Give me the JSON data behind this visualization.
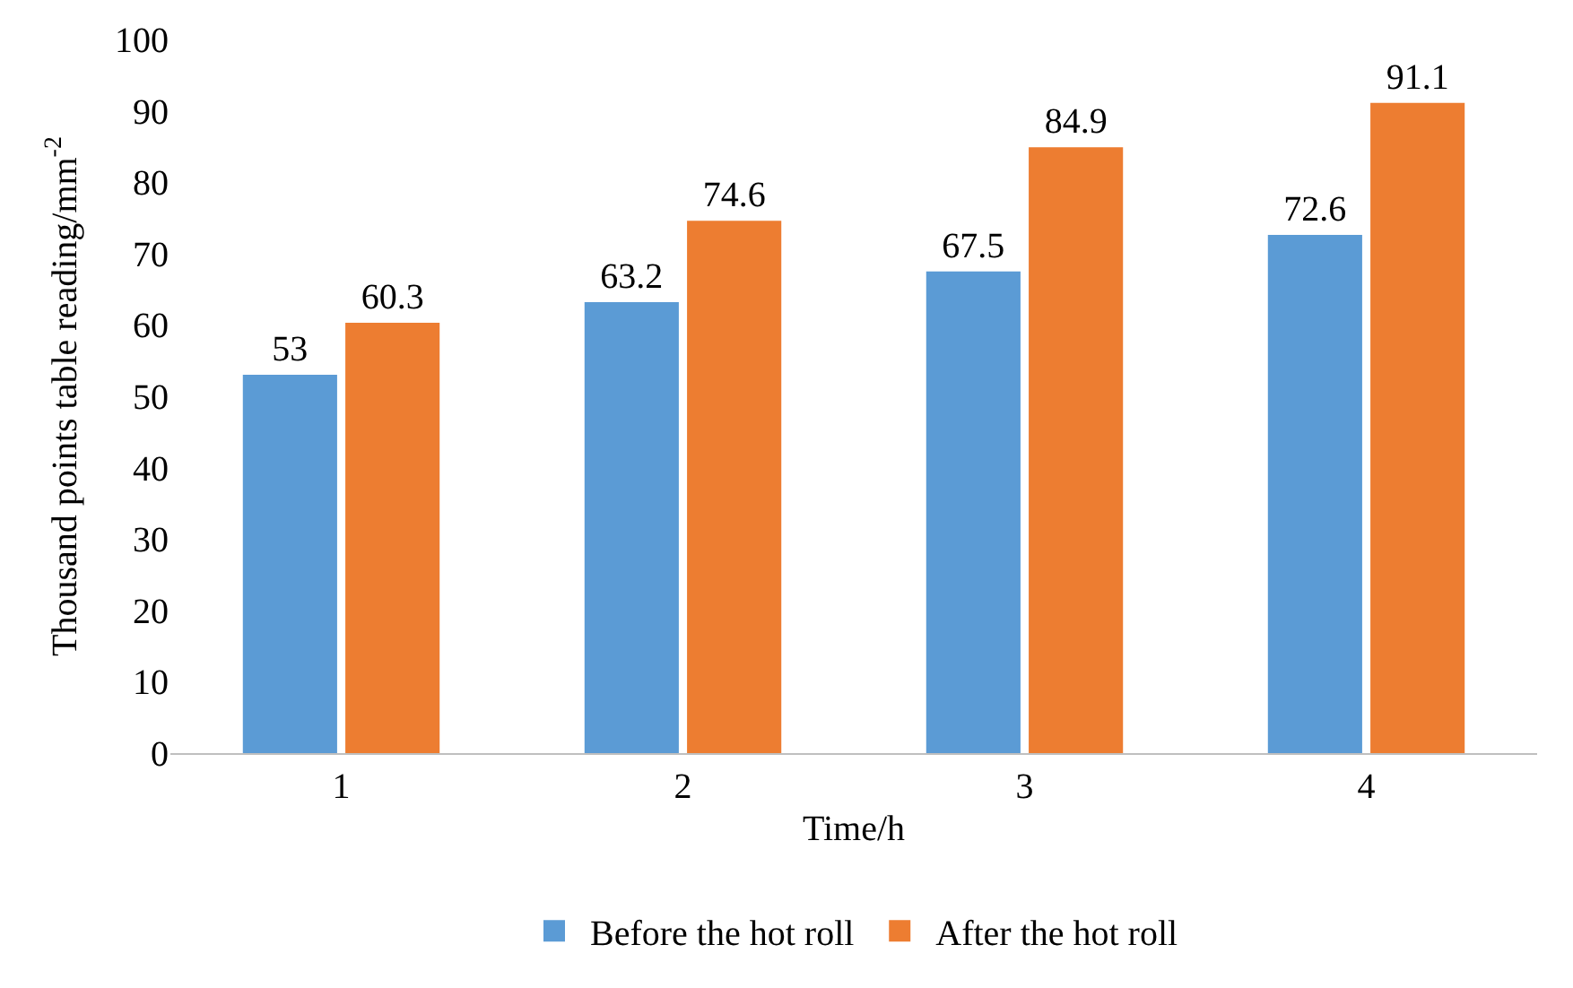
{
  "chart_data": {
    "type": "bar",
    "xlabel": "Time/h",
    "ylabel": "Thousand points table reading/mm$^{-2}$",
    "categories": [
      "1",
      "2",
      "3",
      "4"
    ],
    "series": [
      {
        "name": "Before the hot roll",
        "color": "#5b9bd5",
        "values": [
          53,
          63.2,
          67.5,
          72.6
        ]
      },
      {
        "name": "After the hot roll",
        "color": "#ed7d31",
        "values": [
          60.3,
          74.6,
          84.9,
          91.1
        ]
      }
    ],
    "ylim": [
      0,
      100
    ],
    "yticks": [
      0,
      10,
      20,
      30,
      40,
      50,
      60,
      70,
      80,
      90,
      100
    ],
    "grid": false,
    "legend": "bottom",
    "data_labels": true
  }
}
